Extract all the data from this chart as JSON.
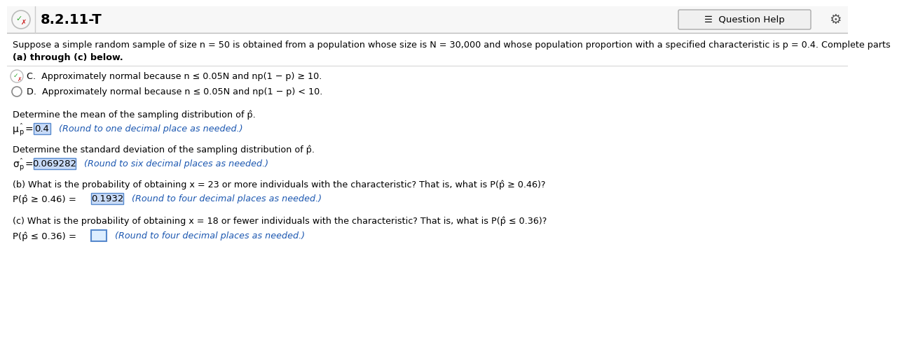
{
  "title": "8.2.11-T",
  "bg_color": "#ffffff",
  "header_bg": "#f7f7f7",
  "border_color": "#cccccc",
  "blue_color": "#1a56b0",
  "highlight_blue": "#c8dbf8",
  "text_color": "#000000",
  "intro_line1": "Suppose a simple random sample of size n = 50 is obtained from a population whose size is N = 30,000 and whose population proportion with a specified characteristic is p = 0.4. Complete parts",
  "intro_line2": "(a) through (c) below.",
  "option_C_text": "Approximately normal because n ≤ 0.05N and np(1 − p) ≥ 10.",
  "option_D_text": "Approximately normal because n ≤ 0.05N and np(1 − p) < 10.",
  "mean_label": "Determine the mean of the sampling distribution of p̂.",
  "mean_value": "0.4",
  "mean_hint": "(Round to one decimal place as needed.)",
  "sd_label": "Determine the standard deviation of the sampling distribution of p̂.",
  "sd_value": "0.069282",
  "sd_hint": "(Round to six decimal places as needed.)",
  "part_b_line": "(b) What is the probability of obtaining x = 23 or more individuals with the characteristic? That is, what is P(p̂ ≥ 0.46)?",
  "part_b_prefix": "P(p̂ ≥ 0.46) = ",
  "part_b_value": "0.1932",
  "part_b_hint": "(Round to four decimal places as needed.)",
  "part_c_line": "(c) What is the probability of obtaining x = 18 or fewer individuals with the characteristic? That is, what is P(p̂ ≤ 0.36)?",
  "part_c_prefix": "P(p̂ ≤ 0.36) = ",
  "part_c_hint": "(Round to four decimal places as needed.)"
}
